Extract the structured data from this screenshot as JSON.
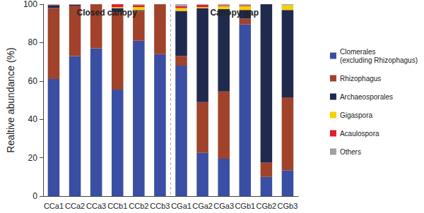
{
  "chart_data": {
    "type": "bar",
    "stacked": true,
    "y_label": "Realtive abundance (%)",
    "categories": [
      "CCa1",
      "CCa2",
      "CCa3",
      "CCb1",
      "CCb2",
      "CCb3",
      "CGa1",
      "CGa2",
      "CGa3",
      "CGb1",
      "CGb2",
      "CGb3"
    ],
    "series": [
      {
        "name": "Clomerales\n(excluding Rhizophagus)",
        "color": "#3a4fa3",
        "values": [
          61,
          73,
          77,
          55.5,
          81,
          74,
          68,
          22.5,
          19.5,
          89.5,
          10,
          13.5
        ]
      },
      {
        "name": "Rhizophagus",
        "color": "#a0432a",
        "values": [
          37,
          26,
          23,
          40.5,
          15.5,
          26,
          5,
          26.5,
          35,
          3,
          7.5,
          38
        ]
      },
      {
        "name": "Archaeosporales",
        "color": "#1f2a4d",
        "values": [
          1.5,
          0.7,
          0,
          2,
          0.5,
          0,
          23.5,
          49,
          43,
          4.5,
          82.5,
          45.5
        ]
      },
      {
        "name": "Gigaspora",
        "color": "#f5d000",
        "values": [
          0,
          0,
          0,
          0.5,
          1.5,
          0,
          1.5,
          0.5,
          1.5,
          2,
          0,
          2.5
        ]
      },
      {
        "name": "Acaulospora",
        "color": "#e01e2a",
        "values": [
          0.3,
          0.2,
          0,
          1.5,
          1,
          0,
          1,
          1.2,
          0.5,
          0.5,
          0,
          0
        ]
      },
      {
        "name": "Others",
        "color": "#a0a0a0",
        "values": [
          0.2,
          0.1,
          0,
          0,
          0.5,
          0,
          1,
          0.3,
          0.5,
          0.5,
          0,
          0.5
        ]
      }
    ],
    "ylim": [
      0,
      100
    ],
    "yticks": [
      0,
      20,
      40,
      60,
      80,
      100
    ],
    "legend": "right",
    "annotations": [
      {
        "text": "Closed canopy",
        "from": "CCa1",
        "to": "CCb3"
      },
      {
        "text": "Canopy gap",
        "from": "CGa1",
        "to": "CGb3"
      }
    ]
  }
}
